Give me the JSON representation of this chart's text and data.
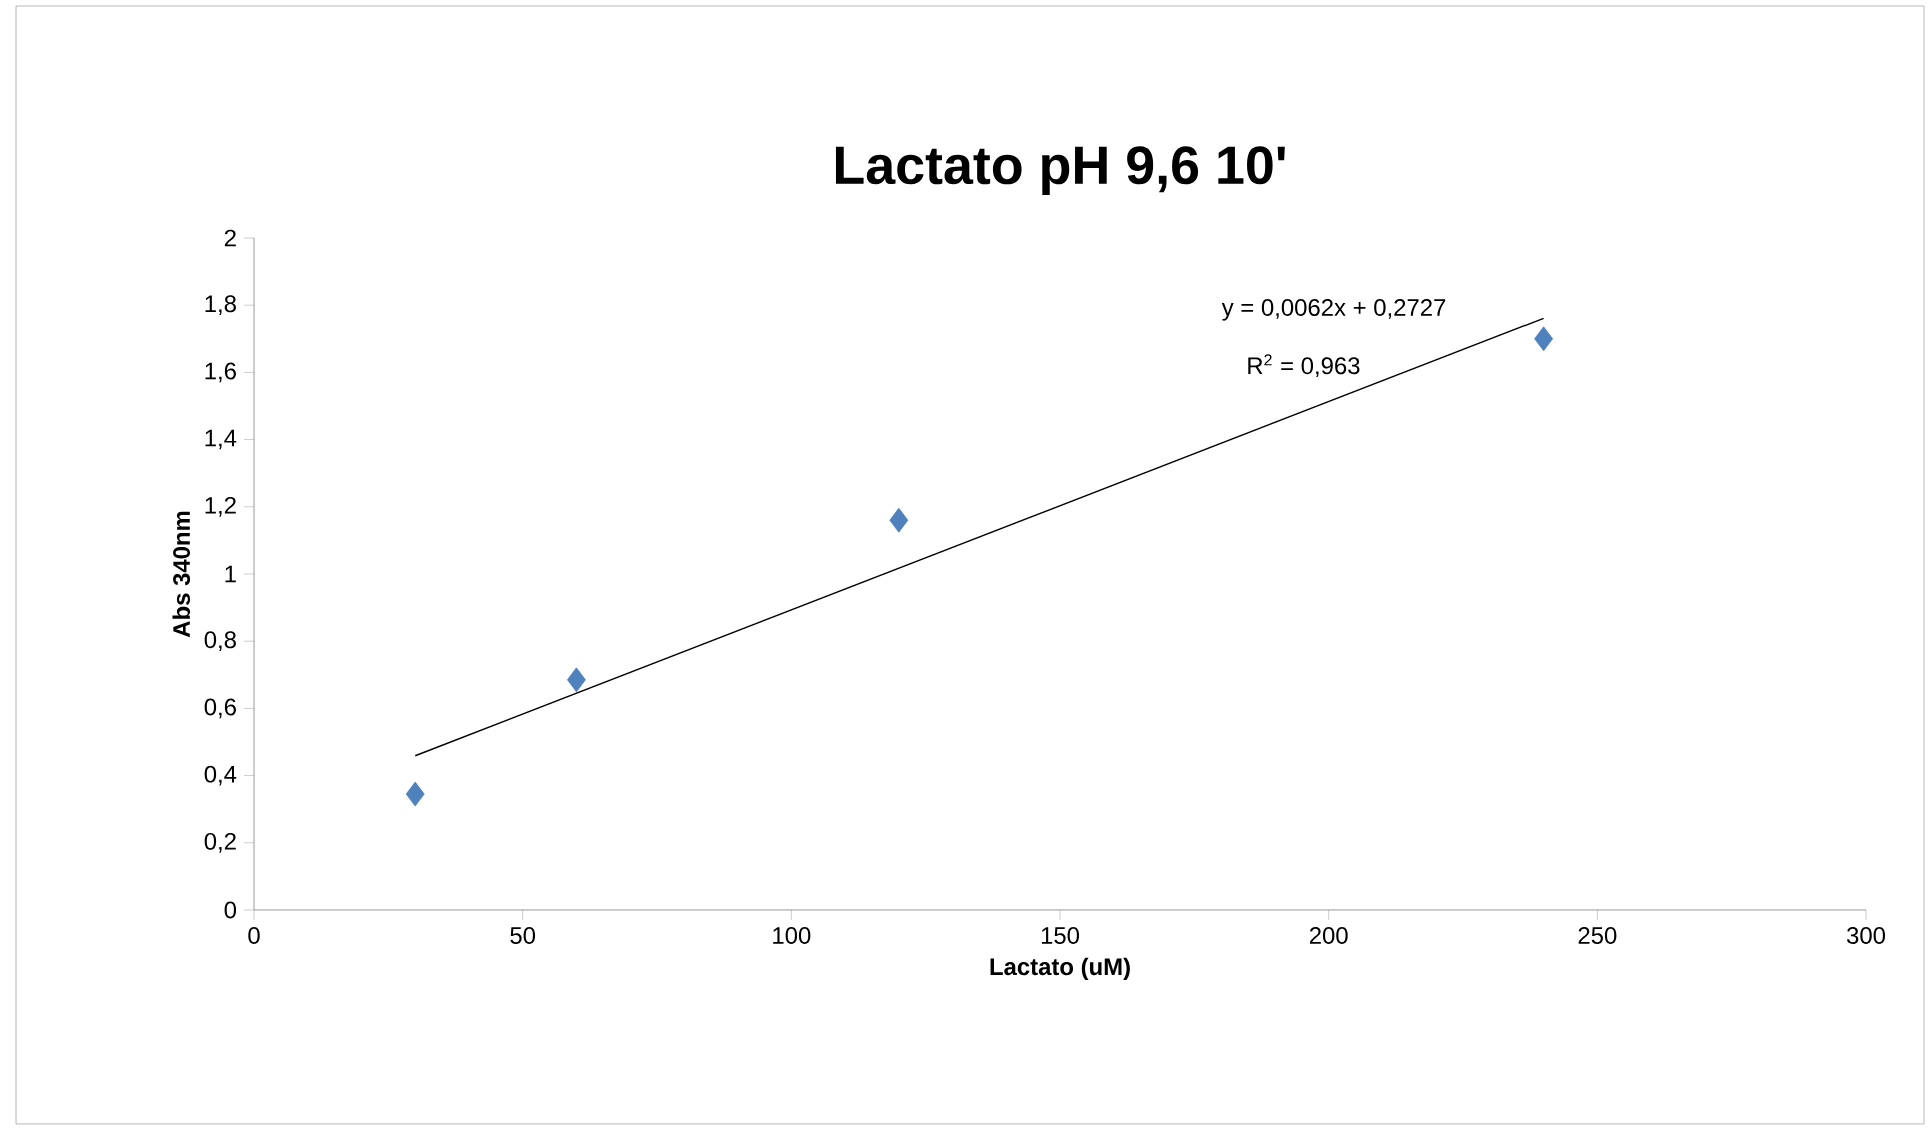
{
  "chart_data": {
    "type": "scatter",
    "title": "Lactato pH 9,6 10'",
    "xlabel": "Lactato (uM)",
    "ylabel": "Abs 340nm",
    "series": [
      {
        "color": "#4f81bd",
        "marker": "diamond",
        "x": [
          30,
          60,
          120,
          240
        ],
        "values": [
          0.345,
          0.685,
          1.16,
          1.7
        ]
      },
      {
        "type": "line",
        "color": "#000000",
        "marker": "none",
        "line_style": "solid",
        "x": [
          30,
          240
        ],
        "values": [
          0.459,
          1.761
        ]
      }
    ],
    "annotations": [
      "y = 0,0062x + 0,2727",
      "R$^{2}$ = 0,963"
    ],
    "xlim": [
      0,
      300
    ],
    "xticks": [
      0,
      50,
      100,
      150,
      200,
      250,
      300
    ],
    "ylim": [
      0,
      2
    ],
    "yticks": [
      0,
      {
        "value": 0.2,
        "label": "0,2"
      },
      {
        "value": 0.4,
        "label": "0,4"
      },
      {
        "value": 0.6,
        "label": "0,6"
      },
      {
        "value": 0.8,
        "label": "0,8"
      },
      1,
      {
        "value": 1.2,
        "label": "1,2"
      },
      {
        "value": 1.4,
        "label": "1,4"
      },
      {
        "value": 1.6,
        "label": "1,6"
      },
      {
        "value": 1.8,
        "label": "1,8"
      },
      2
    ],
    "grid": false
  }
}
